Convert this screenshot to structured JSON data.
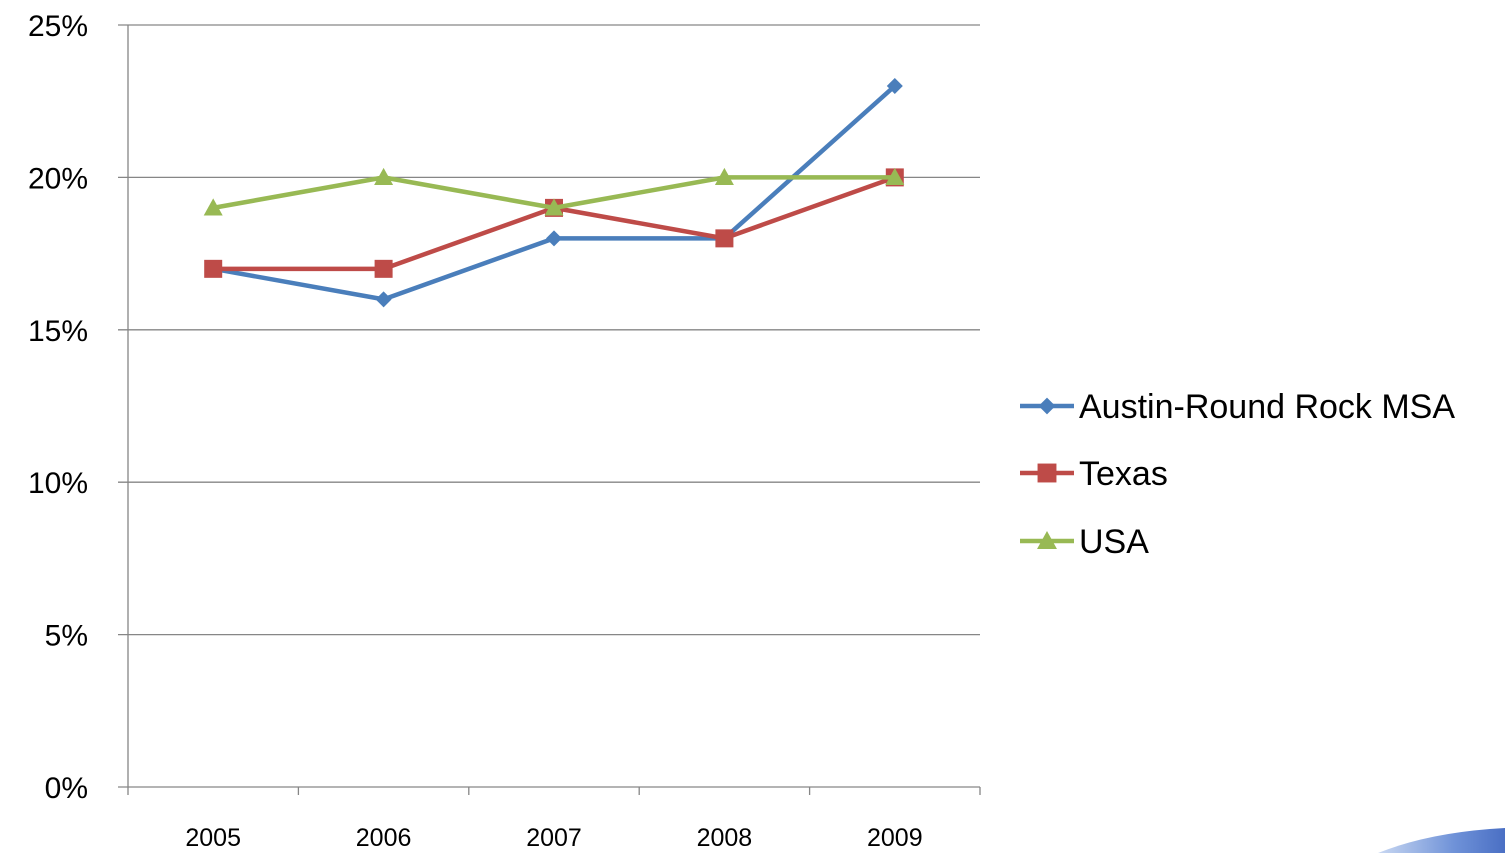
{
  "chart_data": {
    "type": "line",
    "categories": [
      "2005",
      "2006",
      "2007",
      "2008",
      "2009"
    ],
    "series": [
      {
        "name": "Austin-Round Rock MSA",
        "color": "#4A7EBB",
        "marker": "diamond",
        "values": [
          17,
          16,
          18,
          18,
          23
        ]
      },
      {
        "name": "Texas",
        "color": "#BE4B48",
        "marker": "square",
        "values": [
          17,
          17,
          19,
          18,
          20
        ]
      },
      {
        "name": "USA",
        "color": "#98B954",
        "marker": "triangle",
        "values": [
          19,
          20,
          19,
          20,
          20
        ]
      }
    ],
    "ylim": [
      0,
      25
    ],
    "yticks": [
      "0%",
      "5%",
      "10%",
      "15%",
      "20%",
      "25%"
    ],
    "ytick_values": [
      0,
      5,
      10,
      15,
      20,
      25
    ],
    "grid": true,
    "legend": "right"
  }
}
